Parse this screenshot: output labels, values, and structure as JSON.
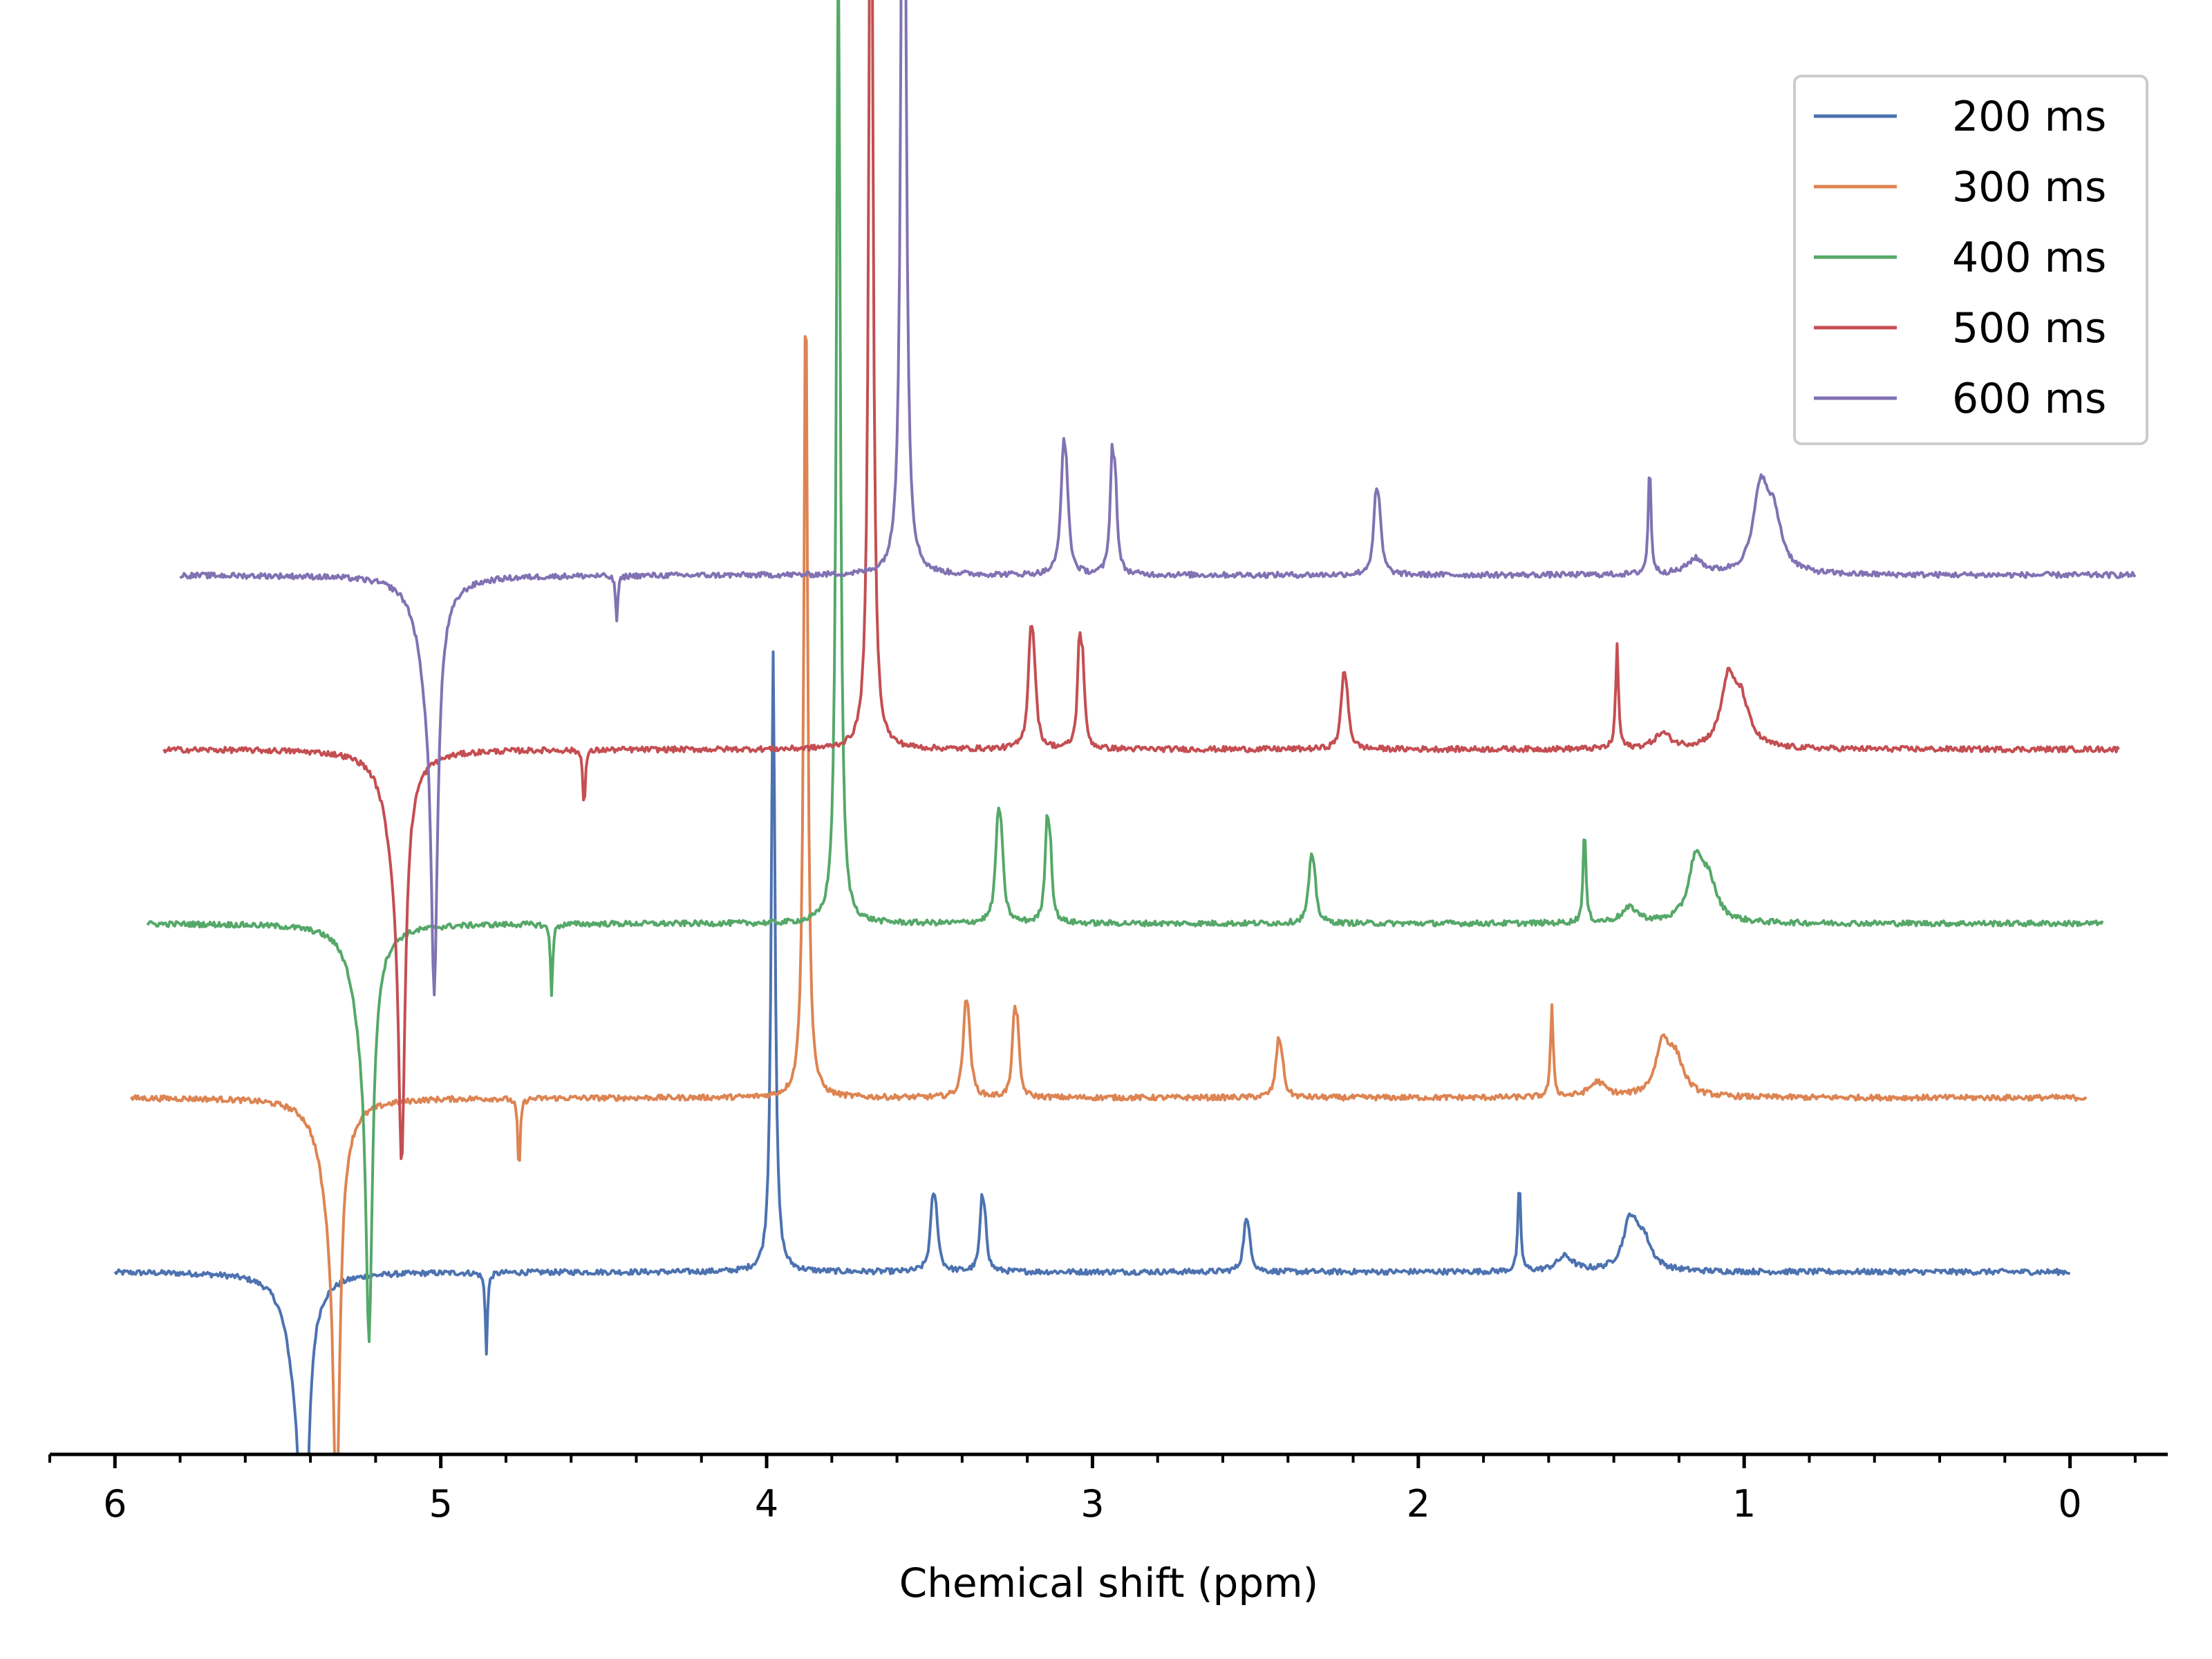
{
  "chart_data": {
    "type": "line",
    "title": "",
    "xlabel": "Chemical shift (ppm)",
    "ylabel": "",
    "x_reversed": true,
    "xlim": [
      6.2,
      -0.3
    ],
    "x_ticks": [
      6,
      5,
      4,
      3,
      2,
      1,
      0
    ],
    "x_ticks_labels": [
      "6",
      "5",
      "4",
      "3",
      "2",
      "1",
      "0"
    ],
    "x_minor_step": 0.2,
    "grid": false,
    "legend_position": "top-right",
    "stacked_offset": true,
    "intensity_units": "arbitrary",
    "series": [
      {
        "name": "200 ms",
        "color": "#4c72b0",
        "shift": 0.0,
        "offset": 0,
        "range": [
          6.0,
          0.0
        ],
        "peaks": [
          {
            "ppm": 5.42,
            "height": -14,
            "width": 0.012
          },
          {
            "ppm": 5.44,
            "height": -3.5,
            "width": 0.04
          },
          {
            "ppm": 4.86,
            "height": -3.2,
            "width": 0.004
          },
          {
            "ppm": 3.98,
            "height": 25,
            "width": 0.007
          },
          {
            "ppm": 3.49,
            "height": 2.4,
            "width": 0.009
          },
          {
            "ppm": 3.48,
            "height": 1.6,
            "width": 0.009
          },
          {
            "ppm": 3.34,
            "height": 2.4,
            "width": 0.007
          },
          {
            "ppm": 3.33,
            "height": 1.8,
            "width": 0.007
          },
          {
            "ppm": 2.53,
            "height": 1.6,
            "width": 0.009
          },
          {
            "ppm": 2.52,
            "height": 1.0,
            "width": 0.009
          },
          {
            "ppm": 1.69,
            "height": 3.5,
            "width": 0.005
          },
          {
            "ppm": 1.55,
            "height": 0.6,
            "width": 0.03
          },
          {
            "ppm": 1.35,
            "height": 1.9,
            "width": 0.025
          },
          {
            "ppm": 1.31,
            "height": 1.2,
            "width": 0.03
          }
        ]
      },
      {
        "name": "300 ms",
        "color": "#dd8452",
        "shift": 0.05,
        "offset": 7,
        "range": [
          6.0,
          0.0
        ],
        "peaks": [
          {
            "ppm": 5.42,
            "height": -14,
            "width": 0.012
          },
          {
            "ppm": 5.44,
            "height": -3.5,
            "width": 0.04
          },
          {
            "ppm": 4.86,
            "height": -3.2,
            "width": 0.004
          },
          {
            "ppm": 3.98,
            "height": 33,
            "width": 0.007
          },
          {
            "ppm": 3.49,
            "height": 3.0,
            "width": 0.009
          },
          {
            "ppm": 3.48,
            "height": 2.0,
            "width": 0.009
          },
          {
            "ppm": 3.34,
            "height": 3.0,
            "width": 0.007
          },
          {
            "ppm": 3.33,
            "height": 2.2,
            "width": 0.007
          },
          {
            "ppm": 2.53,
            "height": 1.8,
            "width": 0.009
          },
          {
            "ppm": 2.52,
            "height": 1.2,
            "width": 0.009
          },
          {
            "ppm": 1.69,
            "height": 3.6,
            "width": 0.005
          },
          {
            "ppm": 1.55,
            "height": 0.6,
            "width": 0.03
          },
          {
            "ppm": 1.35,
            "height": 2.0,
            "width": 0.025
          },
          {
            "ppm": 1.31,
            "height": 1.4,
            "width": 0.03
          }
        ]
      },
      {
        "name": "400 ms",
        "color": "#55a868",
        "shift": 0.1,
        "offset": 14,
        "range": [
          6.0,
          0.0
        ],
        "peaks": [
          {
            "ppm": 5.42,
            "height": -14,
            "width": 0.012
          },
          {
            "ppm": 5.44,
            "height": -3.5,
            "width": 0.04
          },
          {
            "ppm": 4.86,
            "height": -2.8,
            "width": 0.004
          },
          {
            "ppm": 3.98,
            "height": 40,
            "width": 0.007
          },
          {
            "ppm": 3.49,
            "height": 3.5,
            "width": 0.009
          },
          {
            "ppm": 3.48,
            "height": 2.4,
            "width": 0.009
          },
          {
            "ppm": 3.34,
            "height": 3.5,
            "width": 0.007
          },
          {
            "ppm": 3.33,
            "height": 2.6,
            "width": 0.007
          },
          {
            "ppm": 2.53,
            "height": 2.0,
            "width": 0.009
          },
          {
            "ppm": 2.52,
            "height": 1.4,
            "width": 0.009
          },
          {
            "ppm": 1.69,
            "height": 3.8,
            "width": 0.005
          },
          {
            "ppm": 1.55,
            "height": 0.6,
            "width": 0.03
          },
          {
            "ppm": 1.35,
            "height": 2.3,
            "width": 0.025
          },
          {
            "ppm": 1.31,
            "height": 1.6,
            "width": 0.03
          }
        ]
      },
      {
        "name": "500 ms",
        "color": "#c44e52",
        "shift": 0.15,
        "offset": 21,
        "range": [
          6.0,
          0.0
        ],
        "peaks": [
          {
            "ppm": 5.42,
            "height": -14,
            "width": 0.012
          },
          {
            "ppm": 5.44,
            "height": -3.5,
            "width": 0.04
          },
          {
            "ppm": 4.86,
            "height": -2.4,
            "width": 0.004
          },
          {
            "ppm": 3.98,
            "height": 45,
            "width": 0.007
          },
          {
            "ppm": 3.49,
            "height": 3.8,
            "width": 0.009
          },
          {
            "ppm": 3.48,
            "height": 2.6,
            "width": 0.009
          },
          {
            "ppm": 3.34,
            "height": 3.8,
            "width": 0.007
          },
          {
            "ppm": 3.33,
            "height": 2.8,
            "width": 0.007
          },
          {
            "ppm": 2.53,
            "height": 2.3,
            "width": 0.009
          },
          {
            "ppm": 2.52,
            "height": 1.6,
            "width": 0.009
          },
          {
            "ppm": 1.69,
            "height": 4.2,
            "width": 0.005
          },
          {
            "ppm": 1.55,
            "height": 0.6,
            "width": 0.03
          },
          {
            "ppm": 1.35,
            "height": 2.5,
            "width": 0.025
          },
          {
            "ppm": 1.31,
            "height": 1.8,
            "width": 0.03
          }
        ]
      },
      {
        "name": "600 ms",
        "color": "#8172b3",
        "shift": 0.2,
        "offset": 28,
        "range": [
          6.0,
          0.0
        ],
        "peaks": [
          {
            "ppm": 5.42,
            "height": -14,
            "width": 0.012
          },
          {
            "ppm": 5.44,
            "height": -3.5,
            "width": 0.04
          },
          {
            "ppm": 4.86,
            "height": -1.8,
            "width": 0.004
          },
          {
            "ppm": 3.98,
            "height": 50,
            "width": 0.007
          },
          {
            "ppm": 3.49,
            "height": 4.0,
            "width": 0.009
          },
          {
            "ppm": 3.48,
            "height": 2.8,
            "width": 0.009
          },
          {
            "ppm": 3.34,
            "height": 4.2,
            "width": 0.007
          },
          {
            "ppm": 3.33,
            "height": 3.0,
            "width": 0.007
          },
          {
            "ppm": 2.53,
            "height": 2.6,
            "width": 0.009
          },
          {
            "ppm": 2.52,
            "height": 1.8,
            "width": 0.009
          },
          {
            "ppm": 1.69,
            "height": 4.4,
            "width": 0.005
          },
          {
            "ppm": 1.55,
            "height": 0.6,
            "width": 0.03
          },
          {
            "ppm": 1.35,
            "height": 3.2,
            "width": 0.025
          },
          {
            "ppm": 1.31,
            "height": 2.2,
            "width": 0.03
          }
        ]
      }
    ]
  }
}
